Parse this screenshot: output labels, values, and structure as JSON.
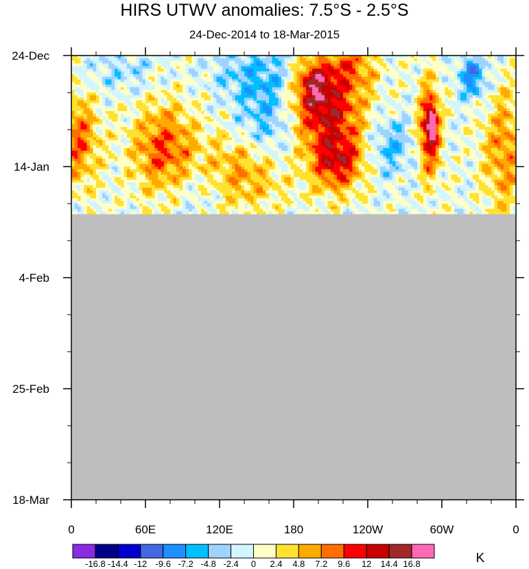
{
  "chart_data": {
    "type": "heatmap",
    "title": "HIRS UTWV anomalies: 7.5°S - 2.5°S",
    "subtitle": "24-Dec-2014 to 18-Mar-2015",
    "x_ticks": [
      "0",
      "60E",
      "120E",
      "180",
      "120W",
      "60W",
      "0"
    ],
    "x_range": [
      0,
      360
    ],
    "x_tick_values": [
      0,
      60,
      120,
      180,
      240,
      300,
      360
    ],
    "y_ticks": [
      "24-Dec",
      "14-Jan",
      "4-Feb",
      "25-Feb",
      "18-Mar"
    ],
    "y_range_days": [
      0,
      84
    ],
    "y_tick_values": [
      0,
      21,
      42,
      63,
      84
    ],
    "data_extent_days": 30,
    "missing_color": "#bebebe",
    "colorbar": {
      "unit": "K",
      "labels": [
        "-16.8",
        "-14.4",
        "-12",
        "-9.6",
        "-7.2",
        "-4.8",
        "-2.4",
        "0",
        "2.4",
        "4.8",
        "7.2",
        "9.6",
        "12",
        "14.4",
        "16.8"
      ],
      "colors": [
        "#8a2be2",
        "#00008b",
        "#0000cd",
        "#4169e1",
        "#1e90ff",
        "#00bfff",
        "#a0d2ff",
        "#d2f5ff",
        "#ffffc8",
        "#ffe132",
        "#ffaa00",
        "#ff6e00",
        "#ff0000",
        "#c80000",
        "#a02828",
        "#ff69b4"
      ],
      "levels": [
        -16.8,
        -14.4,
        -12,
        -9.6,
        -7.2,
        -4.8,
        -2.4,
        0,
        2.4,
        4.8,
        7.2,
        9.6,
        12,
        14.4,
        16.8
      ]
    },
    "anomaly_features": [
      {
        "lon": 205,
        "day": 10,
        "value": 12.5,
        "spread_lon": 22,
        "spread_day": 5
      },
      {
        "lon": 215,
        "day": 20,
        "value": 12.0,
        "spread_lon": 15,
        "spread_day": 4
      },
      {
        "lon": 196,
        "day": 5,
        "value": 9.0,
        "spread_lon": 10,
        "spread_day": 3
      },
      {
        "lon": 290,
        "day": 14,
        "value": 13.5,
        "spread_lon": 6,
        "spread_day": 6
      },
      {
        "lon": 292,
        "day": 13,
        "value": 16.5,
        "spread_lon": 2,
        "spread_day": 2
      },
      {
        "lon": 225,
        "day": 2,
        "value": 7.0,
        "spread_lon": 15,
        "spread_day": 3
      },
      {
        "lon": 75,
        "day": 18,
        "value": 9.5,
        "spread_lon": 18,
        "spread_day": 6
      },
      {
        "lon": 5,
        "day": 16,
        "value": 8.5,
        "spread_lon": 12,
        "spread_day": 6
      },
      {
        "lon": 140,
        "day": 22,
        "value": 7.5,
        "spread_lon": 25,
        "spread_day": 5
      },
      {
        "lon": 160,
        "day": 12,
        "value": -6.5,
        "spread_lon": 18,
        "spread_day": 7
      },
      {
        "lon": 145,
        "day": 3,
        "value": -3.5,
        "spread_lon": 25,
        "spread_day": 4
      },
      {
        "lon": 325,
        "day": 4,
        "value": -8.5,
        "spread_lon": 8,
        "spread_day": 3
      },
      {
        "lon": 258,
        "day": 17,
        "value": -5.5,
        "spread_lon": 12,
        "spread_day": 4
      },
      {
        "lon": 100,
        "day": 25,
        "value": -3.0,
        "spread_lon": 20,
        "spread_day": 4
      },
      {
        "lon": 40,
        "day": 3,
        "value": -3.0,
        "spread_lon": 20,
        "spread_day": 3
      },
      {
        "lon": 350,
        "day": 18,
        "value": 7.0,
        "spread_lon": 12,
        "spread_day": 8
      }
    ]
  }
}
